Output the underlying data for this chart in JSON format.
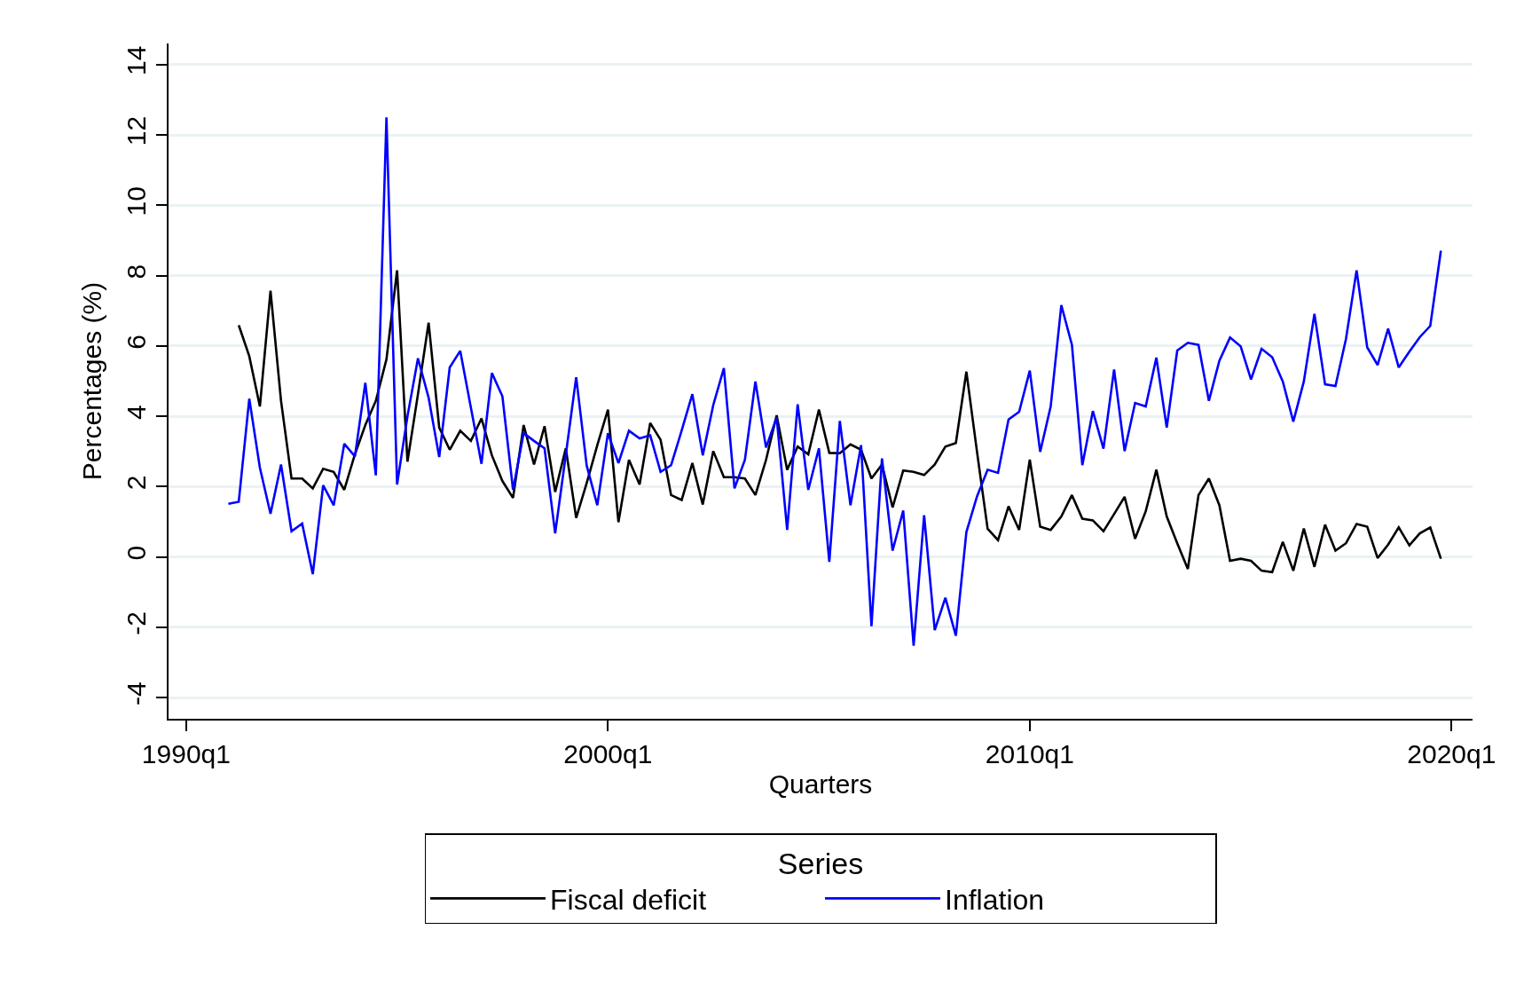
{
  "chart_data": {
    "type": "line",
    "xlabel": "Quarters",
    "ylabel": "Percentages (%)",
    "legend_title": "Series",
    "x": [
      "1991-01",
      "1991-04",
      "1991-07",
      "1991-10",
      "1992-01",
      "1992-04",
      "1992-07",
      "1992-10",
      "1993-01",
      "1993-04",
      "1993-07",
      "1993-10",
      "1994-01",
      "1994-04",
      "1994-07",
      "1994-10",
      "1995-01",
      "1995-04",
      "1995-07",
      "1995-10",
      "1996-01",
      "1996-04",
      "1996-07",
      "1996-10",
      "1997-01",
      "1997-04",
      "1997-07",
      "1997-10",
      "1998-01",
      "1998-04",
      "1998-07",
      "1998-10",
      "1999-01",
      "1999-04",
      "1999-07",
      "1999-10",
      "2000-01",
      "2000-04",
      "2000-07",
      "2000-10",
      "2001-01",
      "2001-04",
      "2001-07",
      "2001-10",
      "2002-01",
      "2002-04",
      "2002-07",
      "2002-10",
      "2003-01",
      "2003-04",
      "2003-07",
      "2003-10",
      "2004-01",
      "2004-04",
      "2004-07",
      "2004-10",
      "2005-01",
      "2005-04",
      "2005-07",
      "2005-10",
      "2006-01",
      "2006-04",
      "2006-07",
      "2006-10",
      "2007-01",
      "2007-04",
      "2007-07",
      "2007-10",
      "2008-01",
      "2008-04",
      "2008-07",
      "2008-10",
      "2009-01",
      "2009-04",
      "2009-07",
      "2009-10",
      "2010-01",
      "2010-04",
      "2010-07",
      "2010-10",
      "2011-01",
      "2011-04",
      "2011-07",
      "2011-10",
      "2012-01",
      "2012-04",
      "2012-07",
      "2012-10",
      "2013-01",
      "2013-04",
      "2013-07",
      "2013-10",
      "2014-01",
      "2014-04",
      "2014-07",
      "2014-10",
      "2015-01",
      "2015-04",
      "2015-07",
      "2015-10",
      "2016-01",
      "2016-04",
      "2016-07",
      "2016-10",
      "2017-01",
      "2017-04",
      "2017-07",
      "2017-10",
      "2018-01",
      "2018-04",
      "2018-07",
      "2018-10",
      "2019-01",
      "2019-04",
      "2019-07",
      "2019-10"
    ],
    "series": [
      {
        "name": "Fiscal deficit",
        "color": "#000000",
        "values": [
          null,
          6.59,
          5.71,
          4.28,
          7.57,
          4.44,
          2.23,
          2.23,
          1.95,
          2.51,
          2.42,
          1.91,
          2.92,
          3.75,
          4.44,
          5.62,
          8.15,
          2.71,
          4.63,
          6.66,
          3.68,
          3.05,
          3.59,
          3.3,
          3.94,
          2.89,
          2.16,
          1.68,
          3.75,
          2.63,
          3.72,
          1.85,
          3.09,
          1.11,
          2.1,
          3.18,
          4.19,
          0.99,
          2.76,
          2.06,
          3.81,
          3.33,
          1.76,
          1.62,
          2.67,
          1.49,
          3.01,
          2.27,
          2.27,
          2.23,
          1.76,
          2.76,
          4.03,
          2.48,
          3.14,
          2.92,
          4.19,
          2.96,
          2.95,
          3.2,
          3.05,
          2.23,
          2.63,
          1.41,
          2.46,
          2.42,
          2.33,
          2.63,
          3.14,
          3.24,
          5.27,
          2.99,
          0.8,
          0.48,
          1.44,
          0.77,
          2.77,
          0.86,
          0.77,
          1.15,
          1.76,
          1.09,
          1.04,
          0.73,
          1.22,
          1.71,
          0.52,
          1.3,
          2.48,
          1.15,
          0.39,
          -0.34,
          1.76,
          2.23,
          1.47,
          -0.11,
          -0.05,
          -0.11,
          -0.39,
          -0.43,
          0.43,
          -0.39,
          0.81,
          -0.28,
          0.92,
          0.18,
          0.39,
          0.94,
          0.86,
          -0.03,
          0.35,
          0.84,
          0.33,
          0.67,
          0.84,
          -0.05
        ]
      },
      {
        "name": "Inflation",
        "color": "#0000ff",
        "values": [
          1.51,
          1.57,
          4.5,
          2.54,
          1.23,
          2.63,
          0.73,
          0.95,
          -0.49,
          2.04,
          1.47,
          3.22,
          2.86,
          4.95,
          2.32,
          12.5,
          2.06,
          4.0,
          5.65,
          4.53,
          2.84,
          5.39,
          5.86,
          4.25,
          2.65,
          5.23,
          4.57,
          1.91,
          3.52,
          3.3,
          3.09,
          0.67,
          2.9,
          5.11,
          2.6,
          1.47,
          3.52,
          2.67,
          3.59,
          3.37,
          3.46,
          2.42,
          2.61,
          3.6,
          4.63,
          2.89,
          4.32,
          5.37,
          1.95,
          2.76,
          4.99,
          3.11,
          3.97,
          0.77,
          4.34,
          1.91,
          3.09,
          -0.14,
          3.87,
          1.47,
          3.18,
          -1.97,
          2.8,
          0.18,
          1.32,
          -2.52,
          1.19,
          -2.08,
          -1.16,
          -2.24,
          0.71,
          1.72,
          2.48,
          2.39,
          3.91,
          4.13,
          5.3,
          2.99,
          4.28,
          7.16,
          6.03,
          2.61,
          4.15,
          3.08,
          5.33,
          3.01,
          4.38,
          4.28,
          5.67,
          3.68,
          5.87,
          6.09,
          6.03,
          4.44,
          5.58,
          6.24,
          5.99,
          5.05,
          5.92,
          5.68,
          4.99,
          3.85,
          4.99,
          6.91,
          4.91,
          4.86,
          6.2,
          8.15,
          5.96,
          5.46,
          6.49,
          5.39,
          5.84,
          6.25,
          6.57,
          8.71
        ]
      }
    ],
    "xlim": [
      "1989-08",
      "2020-07"
    ],
    "xticks": [
      {
        "value": "1990-01",
        "label": "1990q1"
      },
      {
        "value": "2000-01",
        "label": "2000q1"
      },
      {
        "value": "2010-01",
        "label": "2010q1"
      },
      {
        "value": "2020-01",
        "label": "2020q1"
      }
    ],
    "ylim": [
      -4.6,
      14.6
    ],
    "yticks": [
      -4,
      -2,
      0,
      2,
      4,
      6,
      8,
      10,
      12,
      14
    ],
    "grid": "y",
    "legend": "bottom",
    "marker": "none",
    "line_style": "solid"
  }
}
